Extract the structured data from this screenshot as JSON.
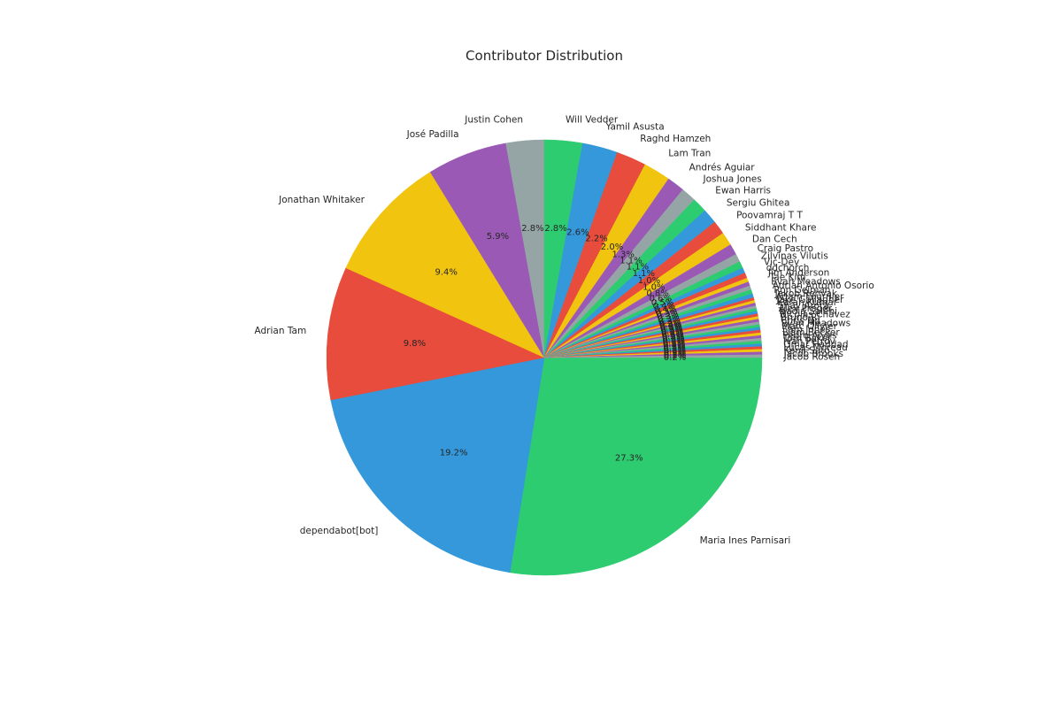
{
  "chart_data": {
    "type": "pie",
    "title": "Contributor Distribution",
    "start_angle_deg": 0,
    "direction": "clockwise",
    "colors": [
      "#2ecc71",
      "#3498db",
      "#e74c3c",
      "#f1c40f",
      "#9b59b6",
      "#95a5a6"
    ],
    "slices": [
      {
        "label": "Maria Ines Parnisari",
        "value": 27.3,
        "pct_label": "27.3%"
      },
      {
        "label": "dependabot[bot]",
        "value": 19.2,
        "pct_label": "19.2%"
      },
      {
        "label": "Adrian Tam",
        "value": 9.8,
        "pct_label": "9.8%"
      },
      {
        "label": "Jonathan Whitaker",
        "value": 9.4,
        "pct_label": "9.4%"
      },
      {
        "label": "José Padilla",
        "value": 5.9,
        "pct_label": "5.9%"
      },
      {
        "label": "Justin Cohen",
        "value": 2.8,
        "pct_label": "2.8%"
      },
      {
        "label": "Will Vedder",
        "value": 2.8,
        "pct_label": "2.8%"
      },
      {
        "label": "Yamil Asusta",
        "value": 2.6,
        "pct_label": "2.6%"
      },
      {
        "label": "Raghd Hamzeh",
        "value": 2.2,
        "pct_label": "2.2%"
      },
      {
        "label": "Lam Tran",
        "value": 2.0,
        "pct_label": "2.0%"
      },
      {
        "label": "Andrés Aguiar",
        "value": 1.3,
        "pct_label": "1.3%"
      },
      {
        "label": "Joshua Jones",
        "value": 1.1,
        "pct_label": "1.1%"
      },
      {
        "label": "Ewan Harris",
        "value": 1.1,
        "pct_label": "1.1%"
      },
      {
        "label": "Sergiu Ghitea",
        "value": 1.1,
        "pct_label": "1.1%"
      },
      {
        "label": "Poovamraj T T",
        "value": 1.0,
        "pct_label": "1.0%"
      },
      {
        "label": "Siddhant Khare",
        "value": 1.0,
        "pct_label": "1.0%"
      },
      {
        "label": "Dan Cech",
        "value": 0.8,
        "pct_label": "0.8%"
      },
      {
        "label": "Craig Pastro",
        "value": 0.6,
        "pct_label": "0.6%"
      },
      {
        "label": "Zilvinas Vilutis",
        "value": 0.5,
        "pct_label": "0.5%"
      },
      {
        "label": "Vic-Dev",
        "value": 0.4,
        "pct_label": "0.4%"
      },
      {
        "label": "ddchorch",
        "value": 0.4,
        "pct_label": "0.4%"
      },
      {
        "label": "Jim Anderson",
        "value": 0.3,
        "pct_label": "0.3%"
      },
      {
        "label": "Tae Kim",
        "value": 0.3,
        "pct_label": "0.3%"
      },
      {
        "label": "Evan Meadows",
        "value": 0.3,
        "pct_label": "0.3%"
      },
      {
        "label": "Adrián Antonio Osorio",
        "value": 0.3,
        "pct_label": "0.3%"
      },
      {
        "label": "Ron Gelman",
        "value": 0.3,
        "pct_label": "0.3%"
      },
      {
        "label": "Jakob Rehvak",
        "value": 0.2,
        "pct_label": "0.2%"
      },
      {
        "label": "Adam Fournier",
        "value": 0.2,
        "pct_label": "0.2%"
      },
      {
        "label": "Jake Gallagher",
        "value": 0.2,
        "pct_label": "0.2%"
      },
      {
        "label": "Karan Kumar",
        "value": 0.2,
        "pct_label": "0.2%"
      },
      {
        "label": "Shay Arora",
        "value": 0.2,
        "pct_label": "0.2%"
      },
      {
        "label": "Alex Prager",
        "value": 0.2,
        "pct_label": "0.2%"
      },
      {
        "label": "Nadia Salehi",
        "value": 0.2,
        "pct_label": "0.2%"
      },
      {
        "label": "Nicolás Chávez",
        "value": 0.2,
        "pct_label": "0.2%"
      },
      {
        "label": "Bruno Ri",
        "value": 0.2,
        "pct_label": "0.2%"
      },
      {
        "label": "Chris Ng",
        "value": 0.2,
        "pct_label": "0.2%"
      },
      {
        "label": "Ryan Meadows",
        "value": 0.2,
        "pct_label": "0.2%"
      },
      {
        "label": "Marc Olivier",
        "value": 0.2,
        "pct_label": "0.2%"
      },
      {
        "label": "Sam Jones",
        "value": 0.2,
        "pct_label": "0.2%"
      },
      {
        "label": "Liam Becker",
        "value": 0.2,
        "pct_label": "0.2%"
      },
      {
        "label": "Pedro Alves",
        "value": 0.2,
        "pct_label": "0.2%"
      },
      {
        "label": "Tom Baker",
        "value": 0.2,
        "pct_label": "0.2%"
      },
      {
        "label": "Ivan Petrov",
        "value": 0.2,
        "pct_label": "0.2%"
      },
      {
        "label": "Omar Haddad",
        "value": 0.2,
        "pct_label": "0.2%"
      },
      {
        "label": "Lucas Moreau",
        "value": 0.2,
        "pct_label": "0.2%"
      },
      {
        "label": "Kenji Sato",
        "value": 0.2,
        "pct_label": "0.2%"
      },
      {
        "label": "Jacob Brooks",
        "value": 0.2,
        "pct_label": "0.2%"
      },
      {
        "label": "Jacob Rosen",
        "value": 0.2,
        "pct_label": "0.2%"
      }
    ]
  }
}
